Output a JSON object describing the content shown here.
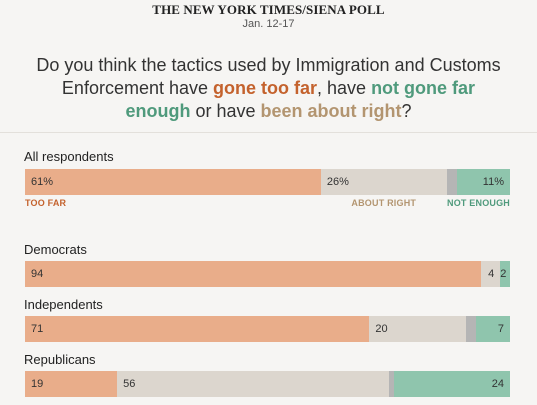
{
  "header": {
    "source": "THE NEW YORK TIMES/SIENA POLL",
    "date": "Jan. 12-17"
  },
  "question": {
    "part1": "Do you think the tactics used by Immigration and Customs Enforcement have ",
    "too_far": "gone too far",
    "part2": ", have ",
    "not_enough": "not gone far enough",
    "part3": " or have ",
    "about_right": "been about right",
    "part4": "?"
  },
  "colors": {
    "too_far": "#e9ad8a",
    "about_right": "#dcd6ce",
    "no_answer": "#b5b5b5",
    "not_enough": "#8fc5ad",
    "too_far_text": "#c4622d",
    "about_right_text": "#b39570",
    "not_enough_text": "#4f9a7c"
  },
  "chart_data": {
    "type": "bar",
    "stacked": true,
    "orientation": "horizontal",
    "categories": [
      "All respondents",
      "Democrats",
      "Independents",
      "Republicans"
    ],
    "series": [
      {
        "name": "TOO FAR",
        "values": [
          61,
          94,
          71,
          19
        ]
      },
      {
        "name": "ABOUT RIGHT",
        "values": [
          26,
          4,
          20,
          56
        ]
      },
      {
        "name": "",
        "values": [
          2,
          0,
          2,
          1
        ]
      },
      {
        "name": "NOT ENOUGH",
        "values": [
          11,
          2,
          7,
          24
        ]
      }
    ],
    "value_labels": [
      [
        "61%",
        "26%",
        "",
        "11%"
      ],
      [
        "94",
        "4",
        "",
        "2"
      ],
      [
        "71",
        "20",
        "",
        "7"
      ],
      [
        "19",
        "56",
        "",
        "24"
      ]
    ],
    "xlim": [
      0,
      100
    ],
    "legend": "under first bar"
  }
}
